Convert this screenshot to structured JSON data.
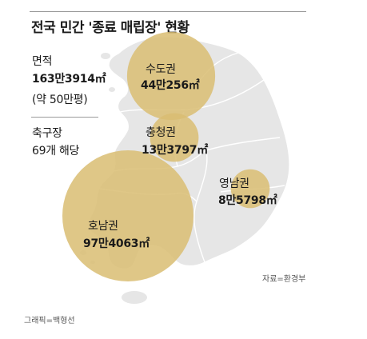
{
  "title": "전국 민간 '종료 매립장' 현황",
  "summary": {
    "area_label": "면적",
    "area_value": "163만3914㎡",
    "area_note": "(약 50만평)",
    "soccer_label": "축구장",
    "soccer_value": "69개 해당"
  },
  "regions": [
    {
      "name": "수도권",
      "value": "44만256㎡",
      "area_m2": 440256
    },
    {
      "name": "충청권",
      "value": "13만3797㎡",
      "area_m2": 133797
    },
    {
      "name": "영남권",
      "value": "8만5798㎡",
      "area_m2": 85798
    },
    {
      "name": "호남권",
      "value": "97만4063㎡",
      "area_m2": 974063
    }
  ],
  "source": "자료=환경부",
  "credit": "그래픽=백형선",
  "colors": {
    "land": "#e6e6e6",
    "border": "#ffffff",
    "bubble": "#d9bd72",
    "bubble_opacity": 0.85
  }
}
